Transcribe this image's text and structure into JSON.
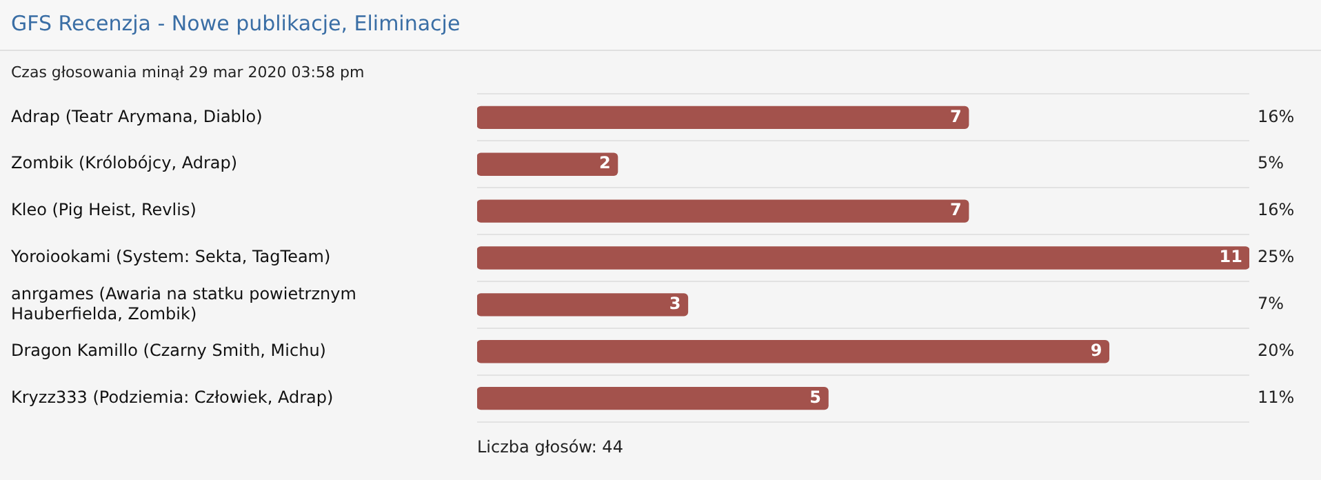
{
  "chart_data": {
    "type": "bar",
    "orientation": "horizontal",
    "title": "GFS Recenzja - Nowe publikacje, Eliminacje",
    "subtitle": "Czas głosowania minął 29 mar 2020 03:58 pm",
    "categories": [
      "Adrap (Teatr Arymana, Diablo)",
      "Zombik (Królobójcy, Adrap)",
      "Kleo (Pig Heist, Revlis)",
      "Yoroiookami (System: Sekta, TagTeam)",
      "anrgames (Awaria na statku powietrznym Hauberfielda, Zombik)",
      "Dragon Kamillo (Czarny Smith, Michu)",
      "Kryzz333 (Podziemia: Człowiek, Adrap)"
    ],
    "values": [
      7,
      2,
      7,
      11,
      3,
      9,
      5
    ],
    "color": "#a3524c",
    "xlim": [
      0,
      11
    ],
    "data_labels": true,
    "tick_labels": "y",
    "grid": "y",
    "legend": false,
    "annotations": [
      "16%",
      "5%",
      "16%",
      "25%",
      "7%",
      "20%",
      "11%",
      "Liczba głosów: 44"
    ]
  }
}
